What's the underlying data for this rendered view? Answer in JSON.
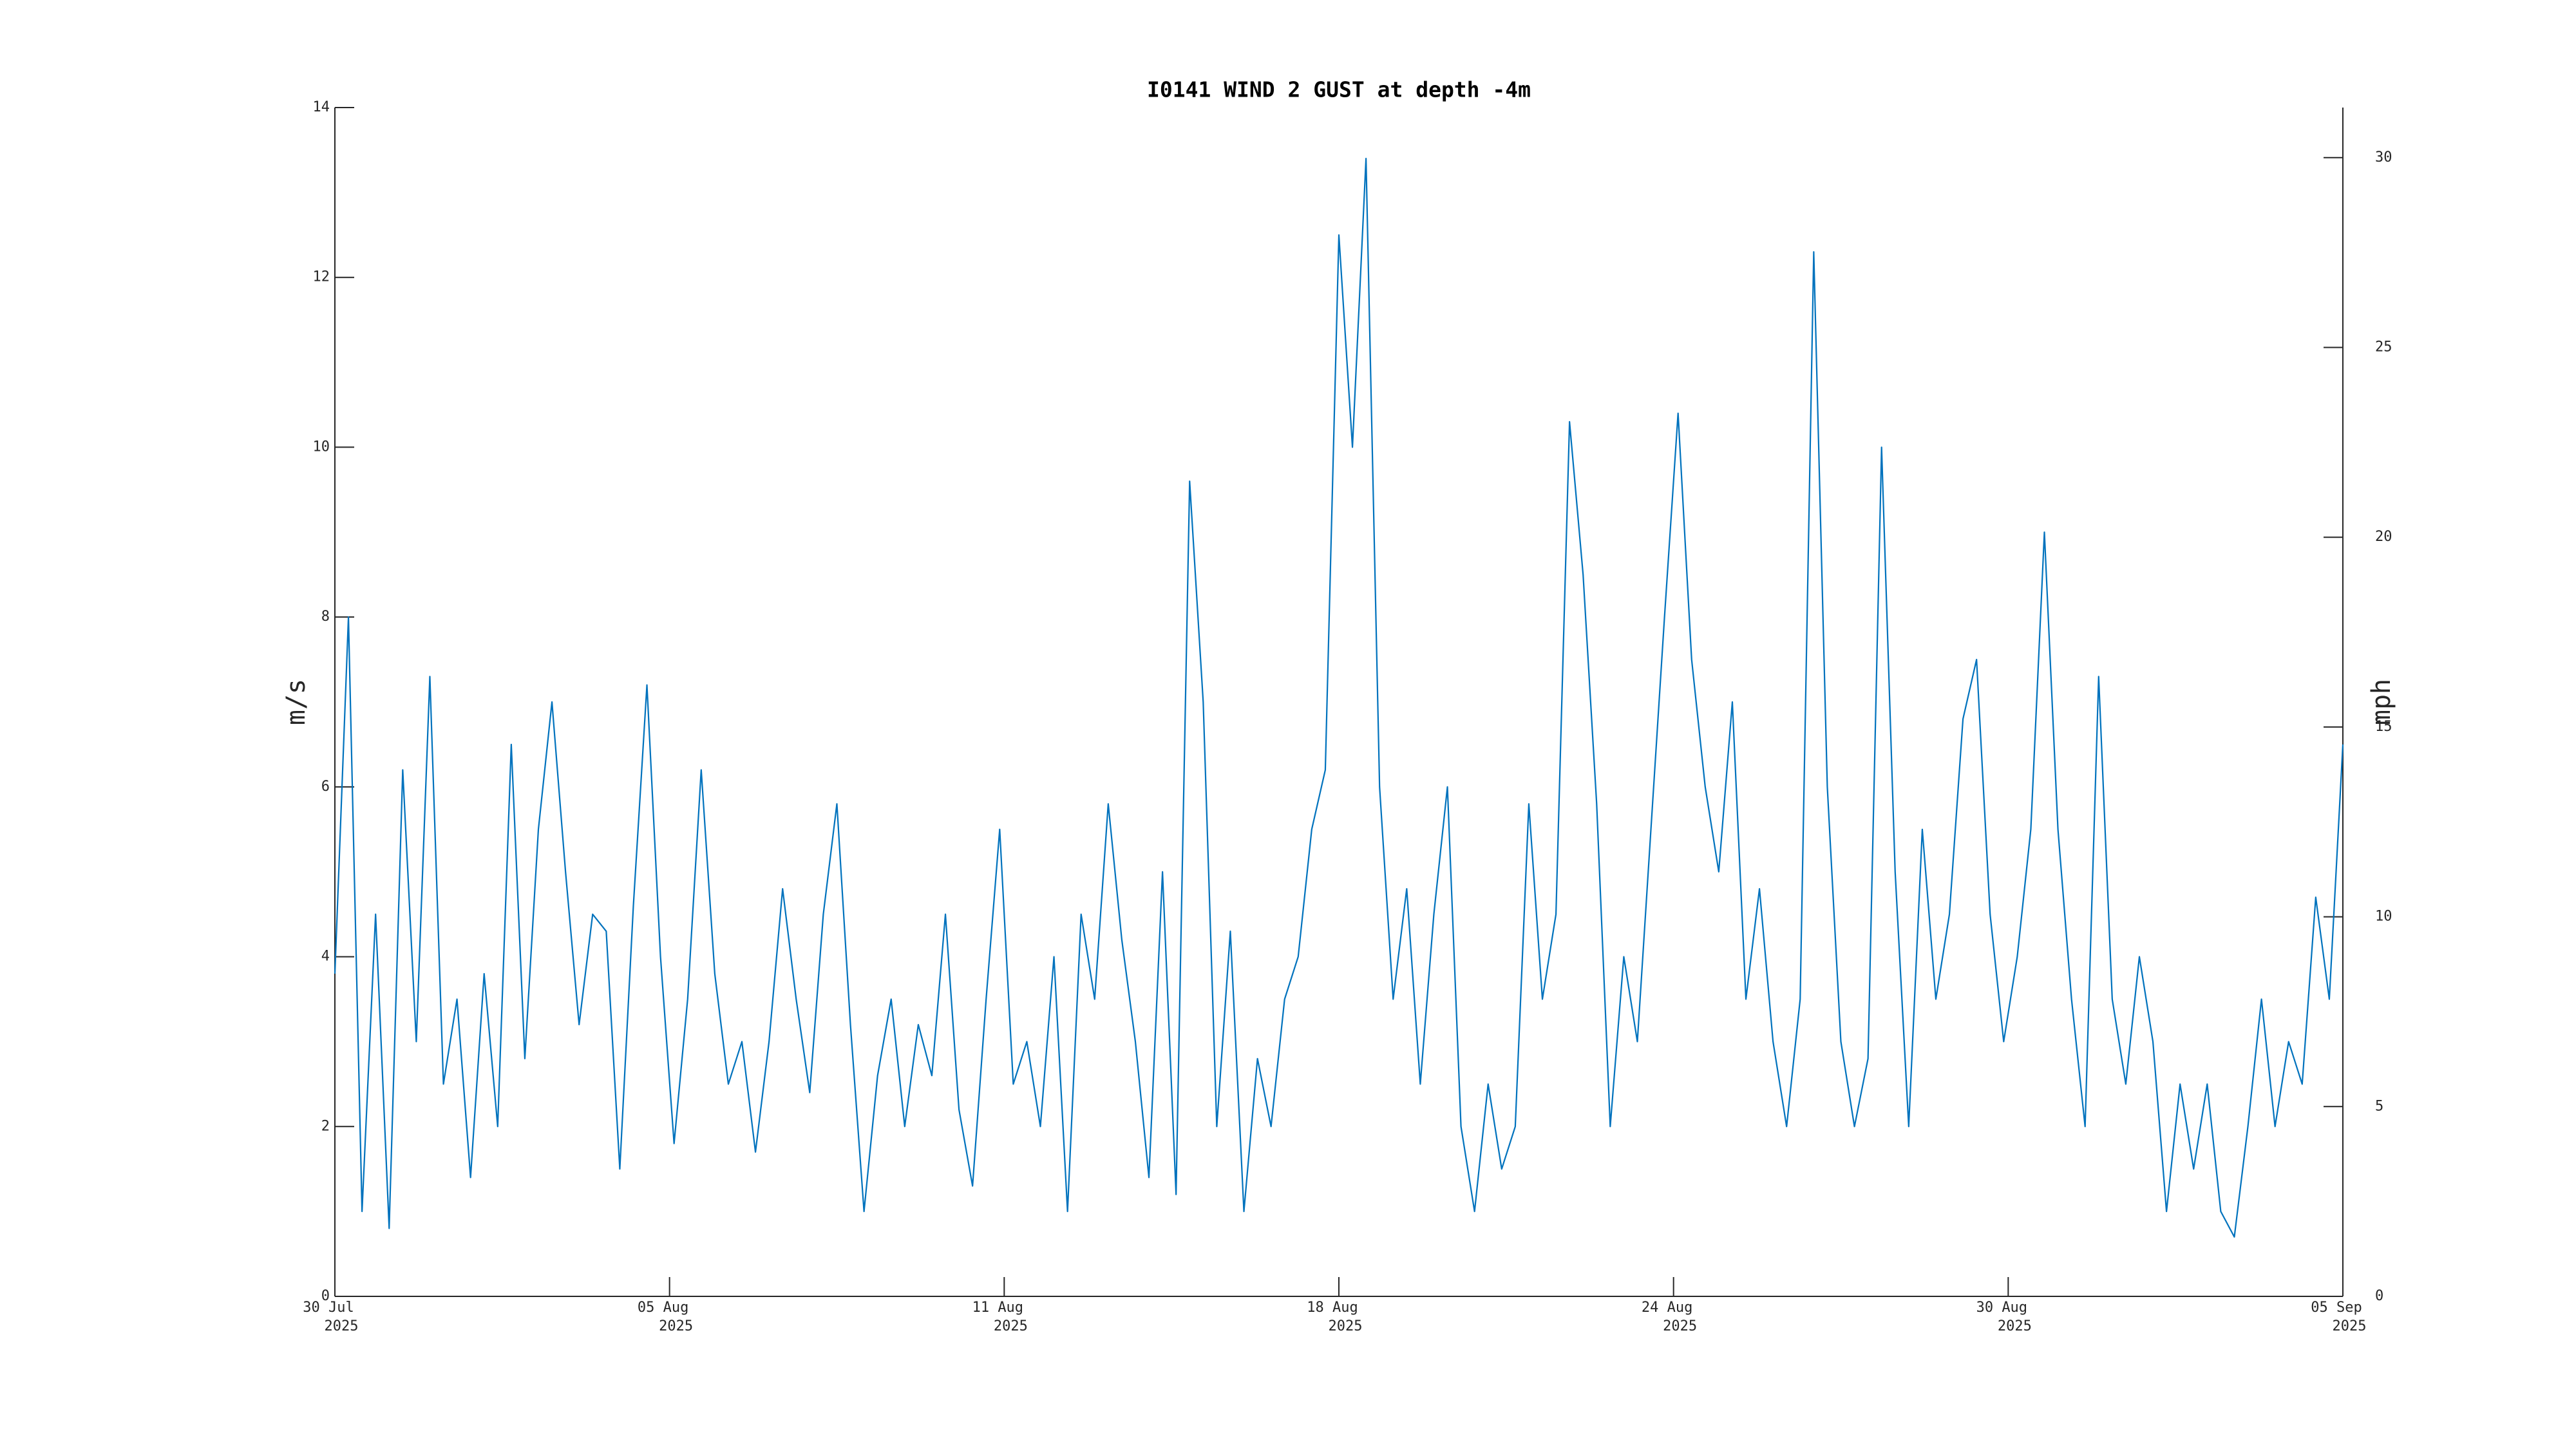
{
  "chart_data": {
    "type": "line",
    "title": "I0141 WIND 2 GUST at depth -4m",
    "ylabel": "m/s",
    "y2label": "mph",
    "xlim": [
      "2025-07-30 00:00",
      "2025-09-05 00:00"
    ],
    "xticks": [
      {
        "value": "2025-07-30 00:00",
        "label": [
          "30 Jul",
          "2025"
        ]
      },
      {
        "value": "2025-08-05 04:00",
        "label": [
          "05 Aug",
          "2025"
        ]
      },
      {
        "value": "2025-08-11 08:00",
        "label": [
          "11 Aug",
          "2025"
        ]
      },
      {
        "value": "2025-08-17 12:00",
        "label": [
          "18 Aug",
          "2025"
        ]
      },
      {
        "value": "2025-08-23 16:00",
        "label": [
          "24 Aug",
          "2025"
        ]
      },
      {
        "value": "2025-08-29 20:00",
        "label": [
          "30 Aug",
          "2025"
        ]
      },
      {
        "value": "2025-09-05 00:00",
        "label": [
          "05 Sep",
          "2025"
        ]
      }
    ],
    "ylim": [
      0,
      14
    ],
    "yticks": [
      0,
      2,
      4,
      6,
      8,
      10,
      12,
      14
    ],
    "y2lim": [
      0,
      31.32
    ],
    "y2ticks": [
      0,
      5,
      10,
      15,
      20,
      25,
      30
    ],
    "x": [
      "2025-07-30 00:00",
      "2025-07-30 06:00",
      "2025-07-30 12:00",
      "2025-07-30 18:00",
      "2025-07-31 00:00",
      "2025-07-31 06:00",
      "2025-07-31 12:00",
      "2025-07-31 18:00",
      "2025-08-01 00:00",
      "2025-08-01 06:00",
      "2025-08-01 12:00",
      "2025-08-01 18:00",
      "2025-08-02 00:00",
      "2025-08-02 06:00",
      "2025-08-02 12:00",
      "2025-08-02 18:00",
      "2025-08-03 00:00",
      "2025-08-03 06:00",
      "2025-08-03 12:00",
      "2025-08-03 18:00",
      "2025-08-04 00:00",
      "2025-08-04 06:00",
      "2025-08-04 12:00",
      "2025-08-04 18:00",
      "2025-08-05 00:00",
      "2025-08-05 06:00",
      "2025-08-05 12:00",
      "2025-08-05 18:00",
      "2025-08-06 00:00",
      "2025-08-06 06:00",
      "2025-08-06 12:00",
      "2025-08-06 18:00",
      "2025-08-07 00:00",
      "2025-08-07 06:00",
      "2025-08-07 12:00",
      "2025-08-07 18:00",
      "2025-08-08 00:00",
      "2025-08-08 06:00",
      "2025-08-08 12:00",
      "2025-08-08 18:00",
      "2025-08-09 00:00",
      "2025-08-09 06:00",
      "2025-08-09 12:00",
      "2025-08-09 18:00",
      "2025-08-10 00:00",
      "2025-08-10 06:00",
      "2025-08-10 12:00",
      "2025-08-10 18:00",
      "2025-08-11 00:00",
      "2025-08-11 06:00",
      "2025-08-11 12:00",
      "2025-08-11 18:00",
      "2025-08-12 00:00",
      "2025-08-12 06:00",
      "2025-08-12 12:00",
      "2025-08-12 18:00",
      "2025-08-13 00:00",
      "2025-08-13 06:00",
      "2025-08-13 12:00",
      "2025-08-13 18:00",
      "2025-08-14 00:00",
      "2025-08-14 06:00",
      "2025-08-14 12:00",
      "2025-08-14 18:00",
      "2025-08-15 00:00",
      "2025-08-15 06:00",
      "2025-08-15 12:00",
      "2025-08-15 18:00",
      "2025-08-16 00:00",
      "2025-08-16 06:00",
      "2025-08-16 12:00",
      "2025-08-16 18:00",
      "2025-08-17 00:00",
      "2025-08-17 06:00",
      "2025-08-17 12:00",
      "2025-08-17 18:00",
      "2025-08-18 00:00",
      "2025-08-18 06:00",
      "2025-08-18 12:00",
      "2025-08-18 18:00",
      "2025-08-19 00:00",
      "2025-08-19 06:00",
      "2025-08-19 12:00",
      "2025-08-19 18:00",
      "2025-08-20 00:00",
      "2025-08-20 06:00",
      "2025-08-20 12:00",
      "2025-08-20 18:00",
      "2025-08-21 00:00",
      "2025-08-21 06:00",
      "2025-08-21 12:00",
      "2025-08-21 18:00",
      "2025-08-22 00:00",
      "2025-08-22 06:00",
      "2025-08-22 12:00",
      "2025-08-22 18:00",
      "2025-08-23 00:00",
      "2025-08-23 06:00",
      "2025-08-23 12:00",
      "2025-08-23 18:00",
      "2025-08-24 00:00",
      "2025-08-24 06:00",
      "2025-08-24 12:00",
      "2025-08-24 18:00",
      "2025-08-25 00:00",
      "2025-08-25 06:00",
      "2025-08-25 12:00",
      "2025-08-25 18:00",
      "2025-08-26 00:00",
      "2025-08-26 06:00",
      "2025-08-26 12:00",
      "2025-08-26 18:00",
      "2025-08-27 00:00",
      "2025-08-27 06:00",
      "2025-08-27 12:00",
      "2025-08-27 18:00",
      "2025-08-28 00:00",
      "2025-08-28 06:00",
      "2025-08-28 12:00",
      "2025-08-28 18:00",
      "2025-08-29 00:00",
      "2025-08-29 06:00",
      "2025-08-29 12:00",
      "2025-08-29 18:00",
      "2025-08-30 00:00",
      "2025-08-30 06:00",
      "2025-08-30 12:00",
      "2025-08-30 18:00",
      "2025-08-31 00:00",
      "2025-08-31 06:00",
      "2025-08-31 12:00",
      "2025-08-31 18:00",
      "2025-09-01 00:00",
      "2025-09-01 06:00",
      "2025-09-01 12:00",
      "2025-09-01 18:00",
      "2025-09-02 00:00",
      "2025-09-02 06:00",
      "2025-09-02 12:00",
      "2025-09-02 18:00",
      "2025-09-03 00:00",
      "2025-09-03 06:00",
      "2025-09-03 12:00",
      "2025-09-03 18:00",
      "2025-09-04 00:00",
      "2025-09-04 06:00",
      "2025-09-04 12:00",
      "2025-09-04 18:00",
      "2025-09-05 00:00"
    ],
    "series": [
      {
        "color": "#0072bd",
        "values": [
          3.8,
          8.0,
          1.0,
          4.5,
          0.8,
          6.2,
          3.0,
          7.3,
          2.5,
          3.5,
          1.4,
          3.8,
          2.0,
          6.5,
          2.8,
          5.5,
          7.0,
          5.0,
          3.2,
          4.5,
          4.3,
          1.5,
          4.6,
          7.2,
          4.0,
          1.8,
          3.5,
          6.2,
          3.8,
          2.5,
          3.0,
          1.7,
          3.0,
          4.8,
          3.5,
          2.4,
          4.5,
          5.8,
          3.2,
          1.0,
          2.6,
          3.5,
          2.0,
          3.2,
          2.6,
          4.5,
          2.2,
          1.3,
          3.5,
          5.5,
          2.5,
          3.0,
          2.0,
          4.0,
          1.0,
          4.5,
          3.5,
          5.8,
          4.2,
          3.0,
          1.4,
          5.0,
          1.2,
          9.6,
          7.0,
          2.0,
          4.3,
          1.0,
          2.8,
          2.0,
          3.5,
          4.0,
          5.5,
          6.2,
          12.5,
          10.0,
          13.4,
          6.0,
          3.5,
          4.8,
          2.5,
          4.5,
          6.0,
          2.0,
          1.0,
          2.5,
          1.5,
          2.0,
          5.8,
          3.5,
          4.5,
          10.3,
          8.5,
          5.8,
          2.0,
          4.0,
          3.0,
          5.5,
          8.0,
          10.4,
          7.5,
          6.0,
          5.0,
          7.0,
          3.5,
          4.8,
          3.0,
          2.0,
          3.5,
          12.3,
          6.0,
          3.0,
          2.0,
          2.8,
          10.0,
          5.0,
          2.0,
          5.5,
          3.5,
          4.5,
          6.8,
          7.5,
          4.5,
          3.0,
          4.0,
          5.5,
          9.0,
          5.5,
          3.5,
          2.0,
          7.3,
          3.5,
          2.5,
          4.0,
          3.0,
          1.0,
          2.5,
          1.5,
          2.5,
          1.0,
          0.7,
          2.0,
          3.5,
          2.0,
          3.0,
          2.5,
          4.7,
          3.5,
          6.5
        ]
      }
    ]
  }
}
